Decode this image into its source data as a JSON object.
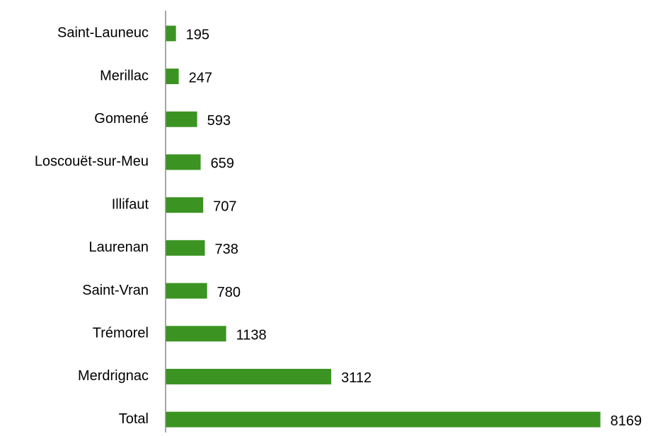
{
  "chart_data": {
    "type": "barh",
    "categories": [
      "Saint-Launeuc",
      "Merillac",
      "Gomené",
      "Loscouët-sur-Meu",
      "Illifaut",
      "Laurenan",
      "Saint-Vran",
      "Trémorel",
      "Merdrignac",
      "Total"
    ],
    "values": [
      195,
      247,
      593,
      659,
      707,
      738,
      780,
      1138,
      3112,
      8169
    ],
    "color": "#3b9422",
    "xlim": [
      0,
      9000
    ]
  }
}
